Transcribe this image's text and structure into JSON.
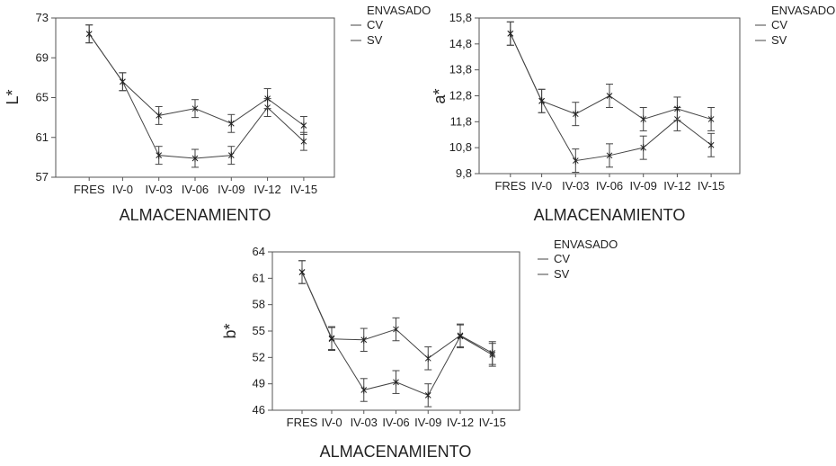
{
  "chart_data": [
    {
      "type": "line",
      "ylabel": "L*",
      "xlabel": "ALMACENAMIENTO",
      "categories": [
        "FRES",
        "IV-0",
        "IV-03",
        "IV-06",
        "IV-09",
        "IV-12",
        "IV-15"
      ],
      "yticks": [
        "57",
        "61",
        "65",
        "69",
        "73"
      ],
      "ylim": [
        57,
        73
      ],
      "legend": {
        "title": "ENVASADO",
        "placement": "right"
      },
      "series": [
        {
          "name": "CV",
          "values": [
            71.4,
            66.6,
            59.2,
            58.9,
            59.2,
            64.0,
            60.6
          ],
          "err": [
            0.9,
            0.9,
            0.9,
            0.9,
            0.9,
            0.9,
            0.9
          ]
        },
        {
          "name": "SV",
          "values": [
            71.4,
            66.6,
            63.2,
            63.9,
            62.4,
            64.9,
            62.2
          ],
          "err": [
            0.9,
            0.9,
            0.9,
            0.9,
            0.9,
            1.0,
            0.9
          ]
        }
      ]
    },
    {
      "type": "line",
      "ylabel": "a*",
      "xlabel": "ALMACENAMIENTO",
      "categories": [
        "FRES",
        "IV-0",
        "IV-03",
        "IV-06",
        "IV-09",
        "IV-12",
        "IV-15"
      ],
      "yticks": [
        "9,8",
        "10,8",
        "11,8",
        "12,8",
        "13,8",
        "14,8",
        "15,8"
      ],
      "ylim": [
        9.8,
        15.8
      ],
      "legend": {
        "title": "ENVASADO",
        "placement": "right"
      },
      "series": [
        {
          "name": "CV",
          "values": [
            15.2,
            12.6,
            10.3,
            10.5,
            10.8,
            11.9,
            10.9
          ],
          "err": [
            0.45,
            0.45,
            0.45,
            0.45,
            0.45,
            0.45,
            0.45
          ]
        },
        {
          "name": "SV",
          "values": [
            15.2,
            12.6,
            12.1,
            12.8,
            11.9,
            12.3,
            11.9
          ],
          "err": [
            0.45,
            0.45,
            0.45,
            0.45,
            0.45,
            0.45,
            0.45
          ]
        }
      ]
    },
    {
      "type": "line",
      "ylabel": "b*",
      "xlabel": "ALMACENAMIENTO",
      "categories": [
        "FRES",
        "IV-0",
        "IV-03",
        "IV-06",
        "IV-09",
        "IV-12",
        "IV-15"
      ],
      "yticks": [
        "46",
        "49",
        "52",
        "55",
        "58",
        "61",
        "64"
      ],
      "ylim": [
        46,
        64
      ],
      "legend": {
        "title": "ENVASADO",
        "placement": "right"
      },
      "series": [
        {
          "name": "CV",
          "values": [
            61.7,
            54.2,
            48.3,
            49.2,
            47.7,
            54.4,
            52.3
          ],
          "err": [
            1.3,
            1.3,
            1.3,
            1.3,
            1.3,
            1.3,
            1.3
          ]
        },
        {
          "name": "SV",
          "values": [
            61.7,
            54.1,
            54.0,
            55.2,
            51.9,
            54.5,
            52.5
          ],
          "err": [
            1.3,
            1.3,
            1.3,
            1.3,
            1.3,
            1.3,
            1.3
          ]
        }
      ]
    }
  ]
}
